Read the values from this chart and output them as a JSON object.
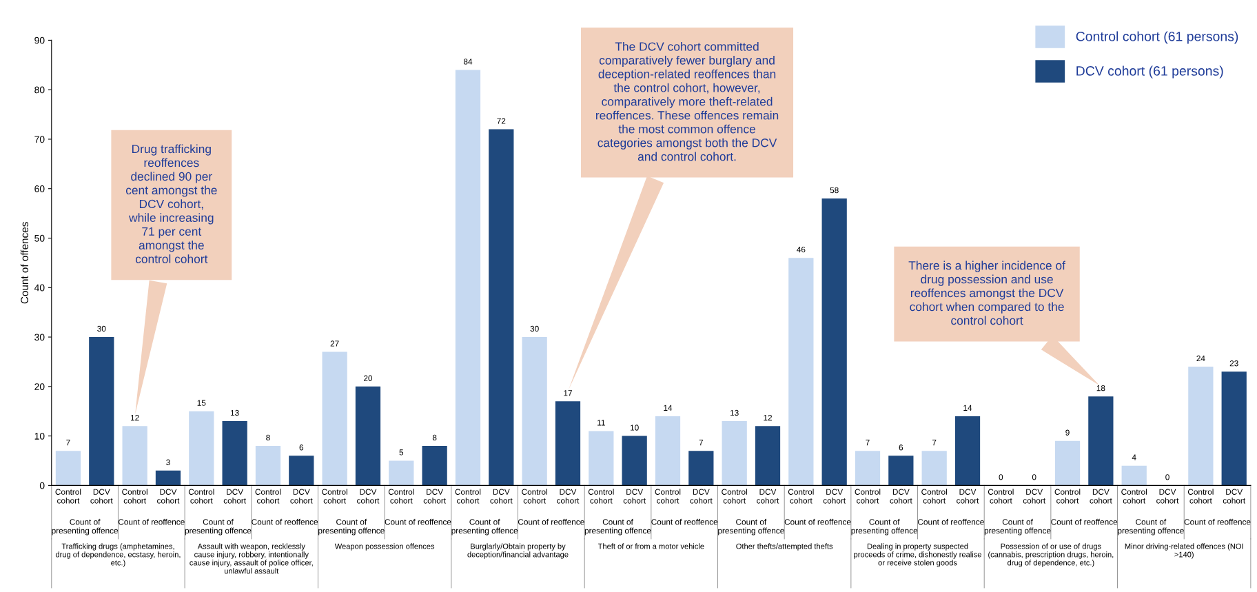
{
  "chart_data": {
    "type": "bar",
    "ylabel": "Count of offences",
    "categories": [
      "Control\ncohort",
      "DCV\ncohort",
      "Control\ncohort",
      "DCV\ncohort",
      "Control\ncohort",
      "DCV\ncohort",
      "Control\ncohort",
      "DCV\ncohort",
      "Control\ncohort",
      "DCV\ncohort",
      "Control\ncohort",
      "DCV\ncohort",
      "Control\ncohort",
      "DCV\ncohort",
      "Control\ncohort",
      "DCV\ncohort",
      "Control\ncohort",
      "DCV\ncohort",
      "Control\ncohort",
      "DCV\ncohort",
      "Control\ncohort",
      "DCV\ncohort",
      "Control\ncohort",
      "DCV\ncohort",
      "Control\ncohort",
      "DCV\ncohort",
      "Control\ncohort",
      "DCV\ncohort",
      "Control\ncohort",
      "DCV\ncohort",
      "Control\ncohort",
      "DCV\ncohort",
      "Control\ncohort",
      "DCV\ncohort",
      "Control\ncohort",
      "DCV\ncohort"
    ],
    "series": [
      {
        "name": "Control cohort (61 persons)",
        "color": "#c6d9f1",
        "values": [
          7,
          null,
          12,
          null,
          15,
          null,
          8,
          null,
          27,
          null,
          5,
          null,
          84,
          null,
          30,
          null,
          11,
          null,
          14,
          null,
          13,
          null,
          46,
          null,
          7,
          null,
          7,
          null,
          0,
          null,
          9,
          null,
          4,
          null,
          24,
          null
        ]
      },
      {
        "name": "DCV cohort (61 persons)",
        "color": "#1f497d",
        "values": [
          null,
          30,
          null,
          3,
          null,
          13,
          null,
          6,
          null,
          20,
          null,
          8,
          null,
          72,
          null,
          17,
          null,
          10,
          null,
          7,
          null,
          12,
          null,
          58,
          null,
          6,
          null,
          14,
          null,
          0,
          null,
          18,
          null,
          0,
          null,
          23
        ]
      }
    ],
    "ylim": [
      0,
      90
    ],
    "yticks": [
      0,
      10,
      20,
      30,
      40,
      50,
      60,
      70,
      80,
      90
    ],
    "data_labels": true,
    "grid": false,
    "legend": "top right",
    "annotations": [
      "Drug trafficking\nreoffences\ndeclined 90 per\ncent amongst the\nDCV cohort,\nwhile increasing\n71 per cent\namongst the\ncontrol cohort",
      "The DCV cohort committed\ncomparatively fewer burglary and\ndeception-related reoffences than\nthe control cohort, however,\ncomparatively more theft-related\nreoffences. These offences remain\nthe most common offence\ncategories amongst both the DCV\nand control cohort.",
      "There is a higher incidence of\ndrug possession and use\nreoffences amongst the DCV\ncohort when compared to the\ncontrol cohort",
      "Count of\npresenting offence",
      "Count of reoffence",
      "Count of\npresenting offence",
      "Count of reoffence",
      "Count of\npresenting offence",
      "Count of reoffence",
      "Count of\npresenting offence",
      "Count of reoffence",
      "Count of\npresenting offence",
      "Count of reoffence",
      "Count of\npresenting offence",
      "Count of reoffence",
      "Count of\npresenting offence",
      "Count of reoffence",
      "Count of\npresenting offence",
      "Count of reoffence",
      "Count of\npresenting offence",
      "Count of reoffence",
      "Trafficking drugs (amphetamines,\ndrug of dependence, ecstasy, heroin,\netc.)",
      "Assault with weapon, recklessly\ncause injury, robbery, intentionally\ncause injury, assault of police officer,\nunlawful assault",
      "Weapon possession offences",
      "Burglarly/Obtain property by\ndeception/financial advantage",
      "Theft of or from a motor vehicle",
      "Other thefts/attempted thefts",
      "Dealing in property suspected\nproceeds of crime, dishonestly realise\nor receive stolen goods",
      "Possession of or use of drugs\n(cannabis, prescription drugs, heroin,\ndrug of dependence, etc.)",
      "Minor driving-related offences (NOI\n>140)"
    ]
  }
}
